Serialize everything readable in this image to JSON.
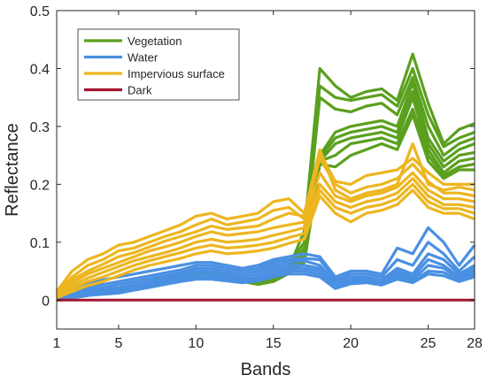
{
  "chart_data": {
    "type": "line",
    "xlabel": "Bands",
    "ylabel": "Reflectance",
    "xlim": [
      1,
      28
    ],
    "ylim": [
      -0.05,
      0.5
    ],
    "xticks": [
      1,
      5,
      10,
      15,
      20,
      25,
      28
    ],
    "yticks": [
      0,
      0.1,
      0.2,
      0.3,
      0.4,
      0.5
    ],
    "ytick_labels": [
      "0",
      "0.1",
      "0.2",
      "0.3",
      "0.4",
      "0.5"
    ],
    "grid": false,
    "legend_position": "top-left",
    "x": [
      1,
      2,
      3,
      4,
      5,
      6,
      7,
      8,
      9,
      10,
      11,
      12,
      13,
      14,
      15,
      16,
      17,
      18,
      19,
      20,
      21,
      22,
      23,
      24,
      25,
      26,
      27,
      28
    ],
    "series": [
      {
        "name": "Vegetation",
        "color": "#5aa01e",
        "lines": [
          [
            0.0,
            0.005,
            0.01,
            0.015,
            0.018,
            0.022,
            0.028,
            0.034,
            0.04,
            0.045,
            0.045,
            0.04,
            0.035,
            0.03,
            0.035,
            0.055,
            0.12,
            0.4,
            0.37,
            0.35,
            0.36,
            0.365,
            0.345,
            0.425,
            0.34,
            0.27,
            0.295,
            0.305
          ],
          [
            0.0,
            0.005,
            0.01,
            0.015,
            0.02,
            0.026,
            0.032,
            0.038,
            0.044,
            0.05,
            0.05,
            0.045,
            0.04,
            0.035,
            0.04,
            0.06,
            0.1,
            0.37,
            0.35,
            0.345,
            0.35,
            0.355,
            0.335,
            0.4,
            0.32,
            0.265,
            0.28,
            0.29
          ],
          [
            0.0,
            0.005,
            0.01,
            0.015,
            0.02,
            0.024,
            0.03,
            0.036,
            0.042,
            0.048,
            0.048,
            0.043,
            0.038,
            0.033,
            0.038,
            0.055,
            0.09,
            0.35,
            0.33,
            0.325,
            0.335,
            0.34,
            0.32,
            0.385,
            0.3,
            0.25,
            0.27,
            0.28
          ],
          [
            0.0,
            0.004,
            0.008,
            0.012,
            0.018,
            0.024,
            0.03,
            0.036,
            0.042,
            0.048,
            0.048,
            0.043,
            0.038,
            0.033,
            0.038,
            0.052,
            0.08,
            0.25,
            0.29,
            0.3,
            0.305,
            0.31,
            0.3,
            0.375,
            0.28,
            0.24,
            0.26,
            0.27
          ],
          [
            0.0,
            0.004,
            0.008,
            0.012,
            0.016,
            0.022,
            0.028,
            0.034,
            0.04,
            0.046,
            0.046,
            0.041,
            0.036,
            0.031,
            0.036,
            0.05,
            0.075,
            0.245,
            0.28,
            0.29,
            0.295,
            0.3,
            0.29,
            0.36,
            0.27,
            0.23,
            0.25,
            0.255
          ],
          [
            0.0,
            0.004,
            0.008,
            0.012,
            0.016,
            0.02,
            0.026,
            0.032,
            0.038,
            0.044,
            0.044,
            0.039,
            0.034,
            0.029,
            0.034,
            0.048,
            0.07,
            0.24,
            0.27,
            0.28,
            0.285,
            0.29,
            0.28,
            0.35,
            0.26,
            0.22,
            0.24,
            0.245
          ],
          [
            0.0,
            0.004,
            0.008,
            0.012,
            0.016,
            0.02,
            0.026,
            0.032,
            0.038,
            0.044,
            0.044,
            0.039,
            0.034,
            0.029,
            0.034,
            0.048,
            0.068,
            0.24,
            0.25,
            0.27,
            0.275,
            0.28,
            0.27,
            0.33,
            0.25,
            0.215,
            0.23,
            0.235
          ],
          [
            0.0,
            0.004,
            0.008,
            0.012,
            0.016,
            0.02,
            0.024,
            0.03,
            0.036,
            0.042,
            0.042,
            0.037,
            0.032,
            0.027,
            0.032,
            0.046,
            0.065,
            0.235,
            0.23,
            0.25,
            0.26,
            0.27,
            0.26,
            0.32,
            0.24,
            0.21,
            0.225,
            0.225
          ]
        ]
      },
      {
        "name": "Water",
        "color": "#4a90e2",
        "lines": [
          [
            0.01,
            0.02,
            0.03,
            0.035,
            0.04,
            0.045,
            0.05,
            0.055,
            0.06,
            0.065,
            0.065,
            0.06,
            0.055,
            0.06,
            0.07,
            0.075,
            0.08,
            0.075,
            0.04,
            0.05,
            0.05,
            0.045,
            0.09,
            0.08,
            0.125,
            0.1,
            0.06,
            0.095
          ],
          [
            0.008,
            0.015,
            0.022,
            0.027,
            0.032,
            0.037,
            0.042,
            0.047,
            0.052,
            0.06,
            0.06,
            0.055,
            0.05,
            0.055,
            0.065,
            0.07,
            0.072,
            0.07,
            0.035,
            0.045,
            0.045,
            0.04,
            0.07,
            0.06,
            0.1,
            0.08,
            0.05,
            0.075
          ],
          [
            0.005,
            0.012,
            0.018,
            0.022,
            0.027,
            0.032,
            0.037,
            0.042,
            0.047,
            0.055,
            0.055,
            0.05,
            0.045,
            0.05,
            0.06,
            0.065,
            0.068,
            0.06,
            0.03,
            0.04,
            0.04,
            0.035,
            0.055,
            0.045,
            0.08,
            0.07,
            0.045,
            0.06
          ],
          [
            0.004,
            0.01,
            0.015,
            0.018,
            0.022,
            0.027,
            0.032,
            0.037,
            0.042,
            0.05,
            0.05,
            0.045,
            0.04,
            0.045,
            0.055,
            0.06,
            0.06,
            0.055,
            0.028,
            0.035,
            0.038,
            0.032,
            0.05,
            0.04,
            0.07,
            0.06,
            0.04,
            0.055
          ],
          [
            0.003,
            0.008,
            0.012,
            0.015,
            0.018,
            0.023,
            0.028,
            0.033,
            0.038,
            0.045,
            0.045,
            0.04,
            0.035,
            0.04,
            0.05,
            0.055,
            0.055,
            0.05,
            0.025,
            0.032,
            0.035,
            0.03,
            0.045,
            0.035,
            0.06,
            0.055,
            0.038,
            0.05
          ],
          [
            0.002,
            0.006,
            0.01,
            0.012,
            0.015,
            0.02,
            0.025,
            0.03,
            0.035,
            0.04,
            0.04,
            0.036,
            0.032,
            0.036,
            0.045,
            0.05,
            0.05,
            0.045,
            0.022,
            0.03,
            0.032,
            0.028,
            0.04,
            0.032,
            0.05,
            0.048,
            0.035,
            0.045
          ],
          [
            0.001,
            0.004,
            0.008,
            0.01,
            0.012,
            0.017,
            0.022,
            0.027,
            0.032,
            0.036,
            0.036,
            0.033,
            0.03,
            0.033,
            0.04,
            0.045,
            0.045,
            0.04,
            0.02,
            0.028,
            0.03,
            0.026,
            0.036,
            0.03,
            0.045,
            0.042,
            0.032,
            0.04
          ]
        ]
      },
      {
        "name": "Impervious surface",
        "color": "#edb620",
        "lines": [
          [
            0.015,
            0.05,
            0.07,
            0.08,
            0.095,
            0.1,
            0.11,
            0.12,
            0.13,
            0.145,
            0.15,
            0.14,
            0.145,
            0.15,
            0.17,
            0.175,
            0.15,
            0.26,
            0.19,
            0.175,
            0.185,
            0.19,
            0.2,
            0.27,
            0.2,
            0.19,
            0.195,
            0.19
          ],
          [
            0.012,
            0.04,
            0.06,
            0.07,
            0.085,
            0.09,
            0.1,
            0.11,
            0.118,
            0.13,
            0.14,
            0.13,
            0.135,
            0.14,
            0.155,
            0.16,
            0.14,
            0.255,
            0.205,
            0.2,
            0.215,
            0.22,
            0.225,
            0.245,
            0.22,
            0.2,
            0.2,
            0.2
          ],
          [
            0.01,
            0.035,
            0.05,
            0.062,
            0.075,
            0.082,
            0.092,
            0.102,
            0.11,
            0.118,
            0.128,
            0.122,
            0.125,
            0.128,
            0.14,
            0.15,
            0.145,
            0.245,
            0.2,
            0.185,
            0.195,
            0.2,
            0.21,
            0.235,
            0.205,
            0.185,
            0.185,
            0.18
          ],
          [
            0.008,
            0.03,
            0.045,
            0.055,
            0.065,
            0.075,
            0.085,
            0.092,
            0.1,
            0.11,
            0.118,
            0.112,
            0.115,
            0.118,
            0.125,
            0.13,
            0.135,
            0.22,
            0.18,
            0.17,
            0.18,
            0.185,
            0.195,
            0.22,
            0.19,
            0.175,
            0.175,
            0.17
          ],
          [
            0.006,
            0.025,
            0.038,
            0.048,
            0.058,
            0.068,
            0.075,
            0.082,
            0.09,
            0.1,
            0.105,
            0.1,
            0.102,
            0.105,
            0.112,
            0.118,
            0.125,
            0.2,
            0.17,
            0.16,
            0.17,
            0.175,
            0.185,
            0.21,
            0.18,
            0.165,
            0.165,
            0.16
          ],
          [
            0.005,
            0.02,
            0.032,
            0.04,
            0.05,
            0.06,
            0.068,
            0.075,
            0.082,
            0.09,
            0.095,
            0.09,
            0.092,
            0.095,
            0.1,
            0.108,
            0.115,
            0.19,
            0.16,
            0.15,
            0.16,
            0.165,
            0.175,
            0.2,
            0.17,
            0.158,
            0.158,
            0.15
          ],
          [
            0.004,
            0.015,
            0.025,
            0.032,
            0.042,
            0.052,
            0.06,
            0.066,
            0.072,
            0.08,
            0.085,
            0.08,
            0.082,
            0.085,
            0.09,
            0.098,
            0.105,
            0.18,
            0.15,
            0.135,
            0.15,
            0.155,
            0.165,
            0.19,
            0.16,
            0.15,
            0.15,
            0.14
          ]
        ]
      },
      {
        "name": "Dark",
        "color": "#a2142f",
        "lines": [
          [
            0,
            0,
            0,
            0,
            0,
            0,
            0,
            0,
            0,
            0,
            0,
            0,
            0,
            0,
            0,
            0,
            0,
            0,
            0,
            0,
            0,
            0,
            0,
            0,
            0,
            0,
            0,
            0
          ]
        ]
      }
    ]
  }
}
